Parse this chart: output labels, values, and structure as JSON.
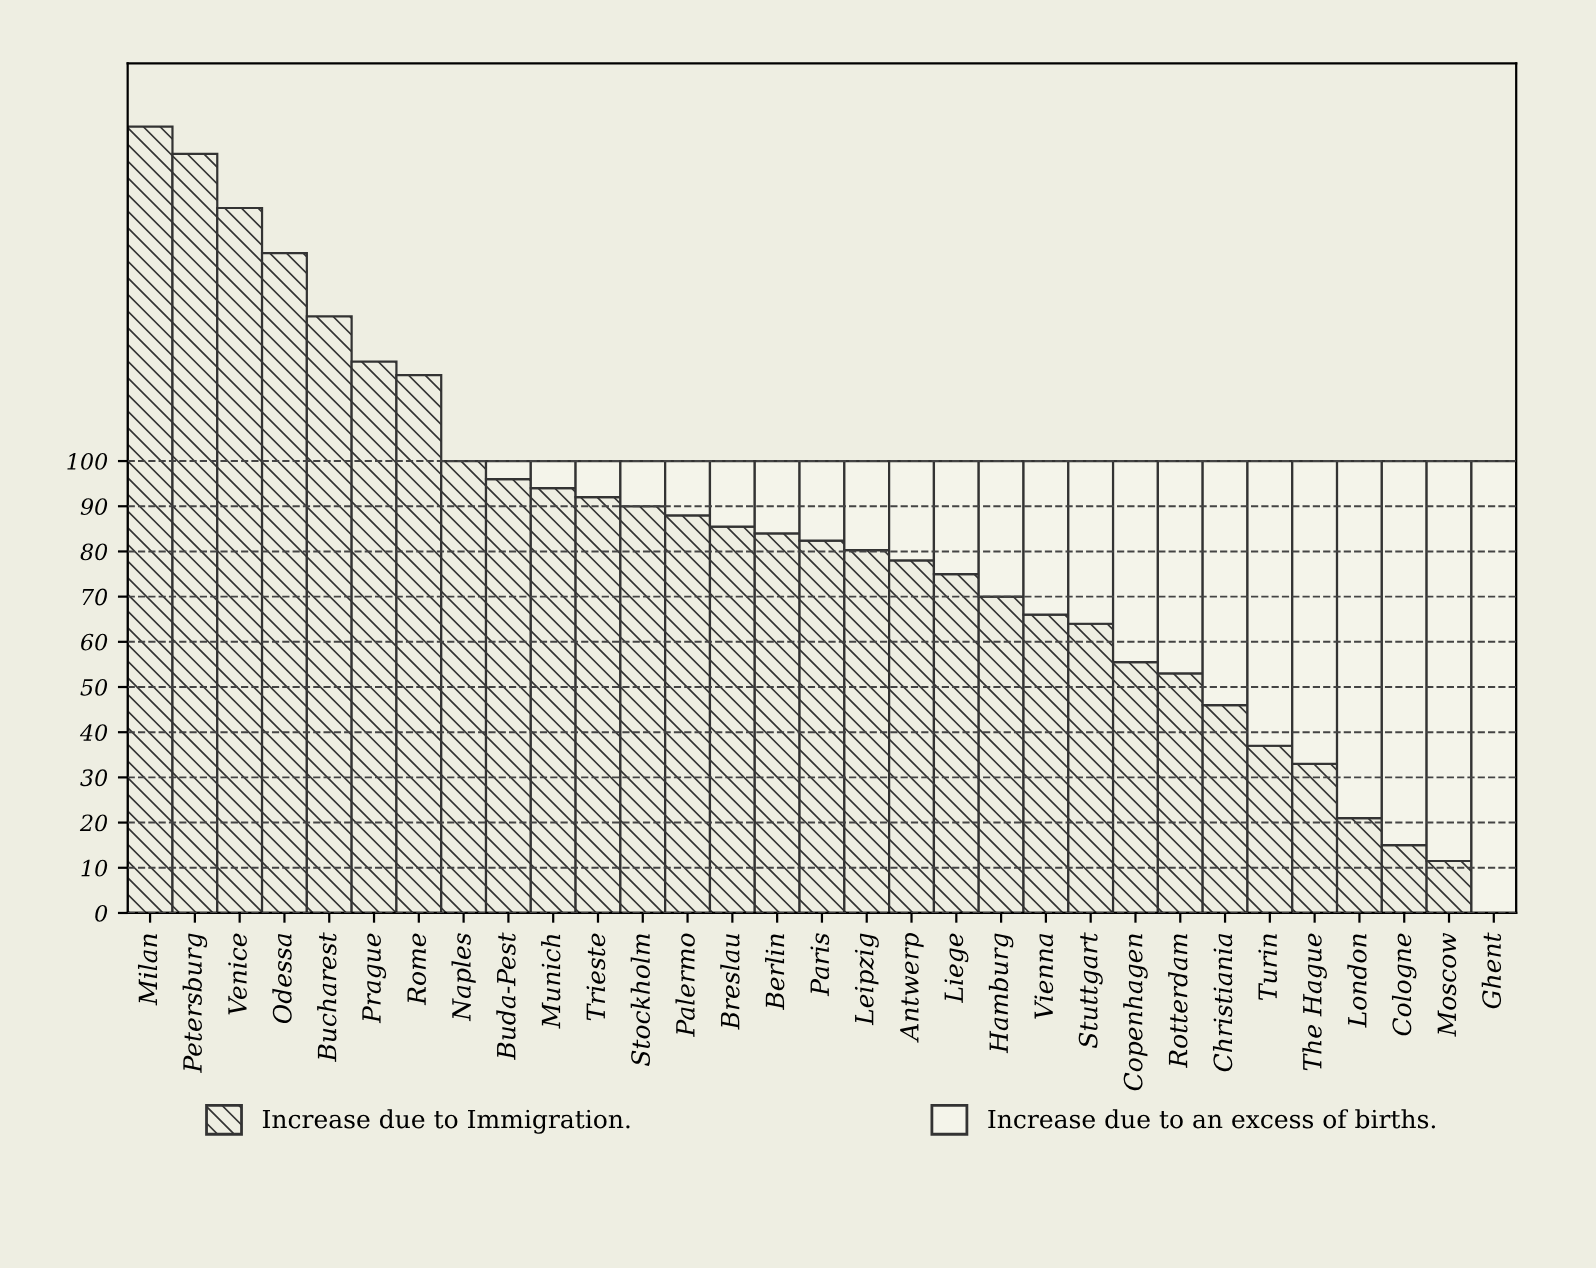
{
  "chart_data": {
    "type": "bar",
    "stacked": true,
    "categories": [
      "Milan",
      "Petersburg",
      "Venice",
      "Odessa",
      "Bucharest",
      "Prague",
      "Rome",
      "Naples",
      "Buda-Pest",
      "Munich",
      "Trieste",
      "Stockholm",
      "Palermo",
      "Breslau",
      "Berlin",
      "Paris",
      "Leipzig",
      "Antwerp",
      "Liege",
      "Hamburg",
      "Vienna",
      "Stuttgart",
      "Copenhagen",
      "Rotterdam",
      "Christiania",
      "Turin",
      "The Hague",
      "London",
      "Cologne",
      "Moscow",
      "Ghent"
    ],
    "series": [
      {
        "name": "Increase due to Immigration.",
        "color": "#333333",
        "values": [
          174,
          168,
          156,
          146,
          132,
          122,
          119,
          100,
          96,
          94,
          92,
          90,
          88,
          85.5,
          84,
          82.4,
          80.3,
          78,
          75,
          70,
          66,
          64,
          55.5,
          53,
          46,
          37,
          33,
          21,
          15,
          11.5,
          0
        ]
      },
      {
        "name": "Increase due to an excess of births.",
        "color": "#f4f4ea",
        "values": [
          null,
          null,
          null,
          null,
          null,
          null,
          null,
          null,
          4,
          6,
          8,
          10,
          12,
          14.5,
          16,
          17.6,
          19.7,
          22,
          25,
          30,
          34,
          36,
          44.5,
          47,
          54,
          63,
          67,
          79,
          85,
          88.5,
          100
        ]
      }
    ],
    "ylim": [
      0,
      188
    ],
    "yticks": [
      0,
      10,
      20,
      30,
      40,
      50,
      60,
      70,
      80,
      90,
      100
    ],
    "grid": "y",
    "legend": "bottom"
  }
}
